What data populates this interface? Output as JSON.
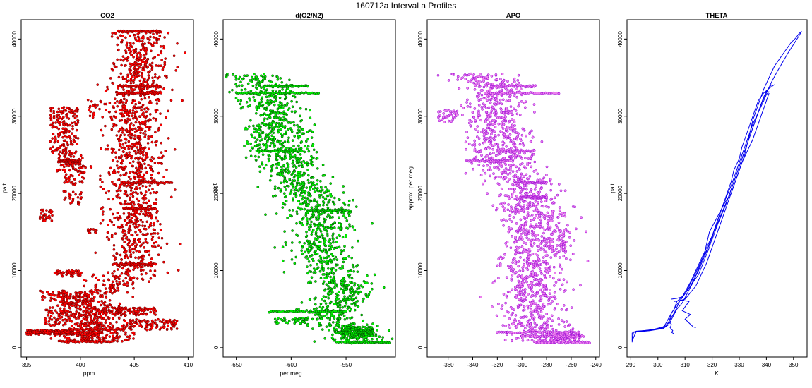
{
  "figure": {
    "title": "160712a   Interval a Profiles"
  },
  "chart_data": [
    {
      "type": "scatter",
      "title": "CO2",
      "xlabel": "ppm",
      "ylabel": "palt",
      "xlim": [
        394.5,
        410.5
      ],
      "ylim": [
        -1200,
        42500
      ],
      "xticks": [
        395,
        400,
        405,
        410
      ],
      "yticks": [
        0,
        10000,
        20000,
        30000,
        40000
      ],
      "grid": false,
      "legend": "none",
      "series_color": "#ff0000",
      "edge_color": "#660000",
      "profile": [
        [
          401,
          800
        ],
        [
          400,
          1500
        ],
        [
          401,
          2000
        ],
        [
          402,
          2600
        ],
        [
          402,
          3500
        ],
        [
          401,
          4500
        ],
        [
          401,
          5500
        ],
        [
          401,
          6500
        ],
        [
          402,
          7200
        ],
        [
          403,
          7800
        ],
        [
          403.5,
          8400
        ],
        [
          404,
          9200
        ],
        [
          405,
          10000
        ],
        [
          405,
          12000
        ],
        [
          405,
          14000
        ],
        [
          405,
          16000
        ],
        [
          405,
          18000
        ],
        [
          405,
          20000
        ],
        [
          405,
          22000
        ],
        [
          405,
          24000
        ],
        [
          405,
          26000
        ],
        [
          405,
          28000
        ],
        [
          405,
          30000
        ],
        [
          405,
          32000
        ],
        [
          405,
          33500
        ],
        [
          405.5,
          35000
        ],
        [
          405.5,
          37000
        ],
        [
          405.5,
          39000
        ],
        [
          405.5,
          41000
        ]
      ],
      "spread": 1.3,
      "clusters": [
        {
          "x": 398.5,
          "y": 30000,
          "dx": 1.3,
          "dy": 1200,
          "n": 80
        },
        {
          "x": 398.5,
          "y": 27000,
          "dx": 1.3,
          "dy": 2000,
          "n": 90
        },
        {
          "x": 399,
          "y": 24000,
          "dx": 1.2,
          "dy": 1200,
          "n": 60
        },
        {
          "x": 399.5,
          "y": 22500,
          "dx": 1.0,
          "dy": 1500,
          "n": 45
        },
        {
          "x": 396.8,
          "y": 17200,
          "dx": 0.6,
          "dy": 800,
          "n": 35
        },
        {
          "x": 399.3,
          "y": 19400,
          "dx": 0.9,
          "dy": 900,
          "n": 25
        },
        {
          "x": 401.2,
          "y": 15100,
          "dx": 0.6,
          "dy": 300,
          "n": 12
        },
        {
          "x": 398.8,
          "y": 9600,
          "dx": 1.3,
          "dy": 400,
          "n": 45
        },
        {
          "x": 397.5,
          "y": 6700,
          "dx": 1.4,
          "dy": 700,
          "n": 40
        },
        {
          "x": 399.5,
          "y": 6300,
          "dx": 1.5,
          "dy": 900,
          "n": 90
        },
        {
          "x": 399.5,
          "y": 4000,
          "dx": 2.8,
          "dy": 1200,
          "n": 160
        },
        {
          "x": 404.5,
          "y": 4700,
          "dx": 2.5,
          "dy": 500,
          "n": 110
        },
        {
          "x": 397.5,
          "y": 2000,
          "dx": 2.5,
          "dy": 300,
          "n": 180
        },
        {
          "x": 406.5,
          "y": 3000,
          "dx": 2.5,
          "dy": 700,
          "n": 110
        },
        {
          "x": 402.5,
          "y": 1400,
          "dx": 2.5,
          "dy": 600,
          "n": 90
        },
        {
          "x": 402.5,
          "y": 31000,
          "dx": 1.8,
          "dy": 1200,
          "n": 45
        }
      ],
      "lines": [
        {
          "x": [
            403.5,
            407.5
          ],
          "y": 41000
        },
        {
          "x": [
            403.5,
            407.5
          ],
          "y": 33900
        },
        {
          "x": [
            403.5,
            407.5
          ],
          "y": 33000
        },
        {
          "x": [
            398,
            400
          ],
          "y": 24200
        },
        {
          "x": [
            404,
            408.5
          ],
          "y": 21400
        },
        {
          "x": [
            404,
            407
          ],
          "y": 18000
        },
        {
          "x": [
            403,
            407
          ],
          "y": 10800
        },
        {
          "x": [
            395,
            402
          ],
          "y": 2000
        },
        {
          "x": [
            399,
            404
          ],
          "y": 2400
        },
        {
          "x": [
            398,
            403
          ],
          "y": 800
        }
      ]
    },
    {
      "type": "scatter",
      "title": "d(O2/N2)",
      "xlabel": "per meg",
      "ylabel": "palt",
      "xlim": [
        -662,
        -505
      ],
      "ylim": [
        -1200,
        42500
      ],
      "xticks": [
        -650,
        -600,
        -550
      ],
      "yticks": [
        0,
        10000,
        20000,
        30000,
        40000
      ],
      "grid": false,
      "legend": "none",
      "series_color": "#00ee00",
      "edge_color": "#004400",
      "profile": [
        [
          -540,
          700
        ],
        [
          -545,
          1700
        ],
        [
          -550,
          2500
        ],
        [
          -560,
          3500
        ],
        [
          -570,
          4500
        ],
        [
          -555,
          6000
        ],
        [
          -550,
          7500
        ],
        [
          -560,
          9000
        ],
        [
          -570,
          11000
        ],
        [
          -575,
          13000
        ],
        [
          -570,
          15000
        ],
        [
          -575,
          17000
        ],
        [
          -580,
          19000
        ],
        [
          -590,
          21000
        ],
        [
          -600,
          23000
        ],
        [
          -615,
          25500
        ],
        [
          -618,
          28000
        ],
        [
          -615,
          30000
        ],
        [
          -620,
          31500
        ],
        [
          -622,
          33000
        ],
        [
          -625,
          34000
        ],
        [
          -645,
          35500
        ]
      ],
      "spread": 14,
      "clusters": [
        {
          "x": -585,
          "y": 26000,
          "dx": 10,
          "dy": 2500,
          "n": 45
        },
        {
          "x": -550,
          "y": 17500,
          "dx": 4,
          "dy": 700,
          "n": 12
        },
        {
          "x": -540,
          "y": 2000,
          "dx": 15,
          "dy": 700,
          "n": 160
        },
        {
          "x": -600,
          "y": 3500,
          "dx": 15,
          "dy": 400,
          "n": 40
        }
      ],
      "lines": [
        {
          "x": [
            -650,
            -575
          ],
          "y": 33000
        },
        {
          "x": [
            -625,
            -585
          ],
          "y": 33900
        },
        {
          "x": [
            -630,
            -590
          ],
          "y": 25500
        },
        {
          "x": [
            -585,
            -550
          ],
          "y": 17800
        },
        {
          "x": [
            -620,
            -550
          ],
          "y": 4700
        },
        {
          "x": [
            -560,
            -525
          ],
          "y": 2000
        },
        {
          "x": [
            -550,
            -510
          ],
          "y": 700
        }
      ]
    },
    {
      "type": "scatter",
      "title": "APO",
      "xlabel": "",
      "ylabel": "approx. per meg",
      "xlim": [
        -377,
        -237
      ],
      "ylim": [
        -1200,
        42500
      ],
      "xticks": [
        -360,
        -340,
        -320,
        -300,
        -280,
        -260,
        -240
      ],
      "yticks": [
        0,
        10000,
        20000,
        30000,
        40000
      ],
      "grid": false,
      "legend": "none",
      "series_color": "#ee82ee",
      "edge_color": "#9400d3",
      "profile": [
        [
          -280,
          700
        ],
        [
          -285,
          1800
        ],
        [
          -290,
          3000
        ],
        [
          -292,
          5000
        ],
        [
          -292,
          7000
        ],
        [
          -292,
          9000
        ],
        [
          -290,
          11000
        ],
        [
          -288,
          13000
        ],
        [
          -288,
          15000
        ],
        [
          -293,
          17000
        ],
        [
          -295,
          19000
        ],
        [
          -300,
          21000
        ],
        [
          -308,
          23000
        ],
        [
          -320,
          25000
        ],
        [
          -320,
          27000
        ],
        [
          -322,
          29000
        ],
        [
          -320,
          31000
        ],
        [
          -318,
          33000
        ],
        [
          -320,
          34000
        ],
        [
          -340,
          35500
        ]
      ],
      "spread": 13,
      "clusters": [
        {
          "x": -360,
          "y": 30000,
          "dx": 8,
          "dy": 800,
          "n": 40
        },
        {
          "x": -300,
          "y": 26500,
          "dx": 10,
          "dy": 2000,
          "n": 45
        },
        {
          "x": -270,
          "y": 14500,
          "dx": 6,
          "dy": 3000,
          "n": 50
        },
        {
          "x": -265,
          "y": 1500,
          "dx": 12,
          "dy": 600,
          "n": 100
        }
      ],
      "lines": [
        {
          "x": [
            -330,
            -270
          ],
          "y": 33000
        },
        {
          "x": [
            -325,
            -290
          ],
          "y": 33900
        },
        {
          "x": [
            -345,
            -310
          ],
          "y": 24200
        },
        {
          "x": [
            -320,
            -290
          ],
          "y": 25500
        },
        {
          "x": [
            -300,
            -280
          ],
          "y": 21400
        },
        {
          "x": [
            -300,
            -280
          ],
          "y": 19500
        },
        {
          "x": [
            -320,
            -255
          ],
          "y": 2000
        },
        {
          "x": [
            -300,
            -250
          ],
          "y": 1500
        },
        {
          "x": [
            -290,
            -245
          ],
          "y": 700
        }
      ]
    },
    {
      "type": "line",
      "title": "THETA",
      "xlabel": "K",
      "ylabel": "palt",
      "xlim": [
        288.6,
        355
      ],
      "ylim": [
        -1200,
        42500
      ],
      "xticks": [
        290,
        300,
        310,
        320,
        330,
        340,
        350
      ],
      "yticks": [
        0,
        10000,
        20000,
        30000,
        40000
      ],
      "grid": false,
      "legend": "none",
      "series_color": "#0000ee",
      "series": [
        {
          "x": [
            290.5,
            290.5,
            292,
            298,
            302,
            303,
            305,
            306,
            306.5,
            307,
            308,
            310,
            313,
            317,
            319,
            322,
            325,
            327,
            329,
            331,
            333,
            335,
            336,
            337,
            338,
            339,
            340,
            341
          ],
          "y": [
            700,
            1900,
            2150,
            2300,
            2600,
            3200,
            4500,
            5000,
            5500,
            6000,
            6300,
            7000,
            9000,
            12000,
            15000,
            17000,
            19000,
            20000,
            22000,
            24000,
            25500,
            27000,
            28000,
            29000,
            30000,
            31000,
            32000,
            33000
          ]
        },
        {
          "x": [
            290.5,
            291,
            296,
            301,
            304,
            305,
            306,
            307,
            309,
            312,
            315,
            318,
            320,
            322,
            324,
            327,
            329,
            331,
            333,
            335,
            337,
            338,
            339,
            340,
            341,
            342
          ],
          "y": [
            800,
            2050,
            2250,
            2500,
            3200,
            4500,
            5000,
            5600,
            6500,
            8000,
            10000,
            12500,
            14500,
            16500,
            18500,
            21000,
            23000,
            25000,
            27000,
            29000,
            30500,
            31500,
            32500,
            33200,
            33700,
            34100
          ]
        },
        {
          "x": [
            290.5,
            292,
            298,
            303,
            306,
            308,
            311,
            315,
            319,
            321,
            323,
            325,
            327,
            328,
            330,
            331,
            332,
            334,
            336,
            337,
            339,
            341,
            343
          ],
          "y": [
            900,
            2100,
            2350,
            2800,
            4500,
            6000,
            7500,
            9500,
            13000,
            15500,
            17500,
            19500,
            21500,
            23000,
            24500,
            26000,
            27000,
            29000,
            31000,
            32000,
            33000,
            33600,
            34100
          ]
        },
        {
          "x": [
            290.5,
            291,
            297,
            302,
            304,
            305.5,
            307,
            309,
            313,
            317,
            320,
            322,
            325,
            327,
            329,
            331,
            333,
            335,
            337,
            339,
            340,
            341
          ],
          "y": [
            1000,
            2000,
            2200,
            2500,
            3000,
            4000,
            5000,
            5800,
            8500,
            12000,
            14000,
            16000,
            18500,
            20500,
            22500,
            24500,
            26500,
            28500,
            30500,
            32000,
            32800,
            33200
          ]
        },
        {
          "x": [
            306,
            308,
            310,
            314,
            318,
            321,
            324,
            326,
            328,
            329,
            330,
            331,
            332,
            333,
            334,
            335,
            337,
            339,
            341,
            343,
            345,
            347,
            349,
            351,
            352,
            353
          ],
          "y": [
            6000,
            6100,
            6300,
            8000,
            11000,
            14000,
            17000,
            19000,
            21000,
            22000,
            23000,
            24000,
            25000,
            26500,
            28000,
            29500,
            31500,
            33500,
            35000,
            36500,
            37500,
            38500,
            39500,
            40200,
            40700,
            41000
          ]
        },
        {
          "x": [
            305,
            307,
            309,
            312,
            316,
            320,
            323,
            326,
            328,
            330,
            331,
            332,
            334,
            336,
            338,
            340,
            342,
            344,
            346,
            348,
            350,
            352,
            353
          ],
          "y": [
            6300,
            6400,
            6600,
            8500,
            11500,
            14500,
            17000,
            19500,
            21500,
            23500,
            24500,
            25500,
            27500,
            29500,
            31500,
            33000,
            34500,
            35800,
            37000,
            38200,
            39300,
            40400,
            41000
          ]
        },
        {
          "x": [
            308,
            311.5,
            309,
            312,
            310,
            313,
            314
          ],
          "y": [
            6200,
            6000,
            4800,
            4300,
            3700,
            2700,
            2600
          ]
        },
        {
          "x": [
            304,
            305,
            304.5,
            305.5,
            305,
            306
          ],
          "y": [
            3500,
            3000,
            2600,
            2200,
            2000,
            1800
          ]
        }
      ]
    }
  ]
}
